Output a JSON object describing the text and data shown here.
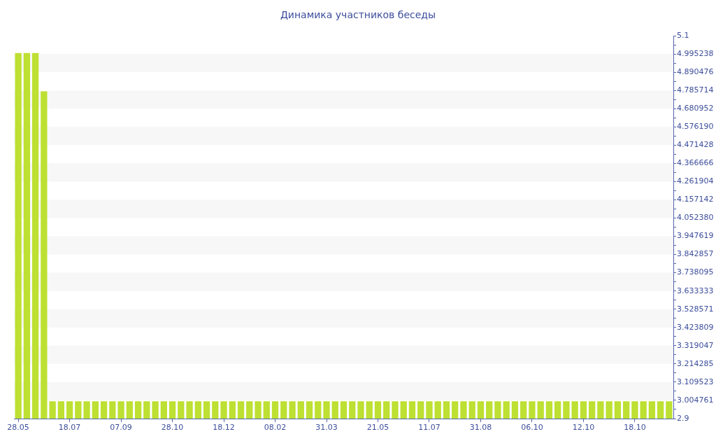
{
  "chart_data": {
    "type": "bar",
    "title": "Динамика участников беседы",
    "categories": [
      "28.05",
      null,
      null,
      null,
      null,
      null,
      "18.07",
      null,
      null,
      null,
      null,
      null,
      "07.09",
      null,
      null,
      null,
      null,
      null,
      "28.10",
      null,
      null,
      null,
      null,
      null,
      "18.12",
      null,
      null,
      null,
      null,
      null,
      "08.02",
      null,
      null,
      null,
      null,
      null,
      "31.03",
      null,
      null,
      null,
      null,
      null,
      "21.05",
      null,
      null,
      null,
      null,
      null,
      "11.07",
      null,
      null,
      null,
      null,
      null,
      "31.08",
      null,
      null,
      null,
      null,
      null,
      "06.10",
      null,
      null,
      null,
      null,
      null,
      "12.10",
      null,
      null,
      null,
      null,
      null,
      "18.10",
      null,
      null,
      null,
      null
    ],
    "values": [
      5,
      5,
      5,
      4.78,
      3,
      3,
      3,
      3,
      3,
      3,
      3,
      3,
      3,
      3,
      3,
      3,
      3,
      3,
      3,
      3,
      3,
      3,
      3,
      3,
      3,
      3,
      3,
      3,
      3,
      3,
      3,
      3,
      3,
      3,
      3,
      3,
      3,
      3,
      3,
      3,
      3,
      3,
      3,
      3,
      3,
      3,
      3,
      3,
      3,
      3,
      3,
      3,
      3,
      3,
      3,
      3,
      3,
      3,
      3,
      3,
      3,
      3,
      3,
      3,
      3,
      3,
      3,
      3,
      3,
      3,
      3,
      3,
      3,
      3,
      3,
      3,
      3
    ],
    "color": "#bde032",
    "ylim": [
      2.9,
      5.1
    ],
    "yticks": [
      2.9,
      {
        "value": 2.952381,
        "label": null
      },
      3.004761,
      {
        "value": 3.057142,
        "label": null
      },
      3.109523,
      {
        "value": 3.161904,
        "label": null
      },
      3.214285,
      {
        "value": 3.266666,
        "label": null
      },
      3.319047,
      {
        "value": 3.371428,
        "label": null
      },
      3.423809,
      {
        "value": 3.47619,
        "label": null
      },
      3.528571,
      {
        "value": 3.580952,
        "label": null
      },
      3.633333,
      {
        "value": 3.685714,
        "label": null
      },
      3.738095,
      {
        "value": 3.790476,
        "label": null
      },
      3.842857,
      {
        "value": 3.895238,
        "label": null
      },
      3.947619,
      {
        "value": 4.0,
        "label": null
      },
      {
        "value": 4.05238,
        "label": "4.052380"
      },
      {
        "value": 4.104761,
        "label": null
      },
      4.157142,
      {
        "value": 4.209523,
        "label": null
      },
      4.261904,
      {
        "value": 4.314285,
        "label": null
      },
      4.366666,
      {
        "value": 4.419047,
        "label": null
      },
      4.471428,
      {
        "value": 4.523809,
        "label": null
      },
      {
        "value": 4.57619,
        "label": "4.576190"
      },
      {
        "value": 4.628571,
        "label": null
      },
      4.680952,
      {
        "value": 4.733333,
        "label": null
      },
      4.785714,
      {
        "value": 4.838095,
        "label": null
      },
      4.890476,
      {
        "value": 4.942857,
        "label": null
      },
      4.995238,
      {
        "value": 5.047619,
        "label": null
      },
      5.1
    ],
    "bands": [
      {
        "axis": "y",
        "from": 3.004761,
        "to": 3.109523,
        "color": "#f7f7f7"
      },
      {
        "axis": "y",
        "from": 3.214285,
        "to": 3.319047,
        "color": "#f7f7f7"
      },
      {
        "axis": "y",
        "from": 3.423809,
        "to": 3.528571,
        "color": "#f7f7f7"
      },
      {
        "axis": "y",
        "from": 3.633333,
        "to": 3.738095,
        "color": "#f7f7f7"
      },
      {
        "axis": "y",
        "from": 3.842857,
        "to": 3.947619,
        "color": "#f7f7f7"
      },
      {
        "axis": "y",
        "from": 4.05238,
        "to": 4.157142,
        "color": "#f7f7f7"
      },
      {
        "axis": "y",
        "from": 4.261904,
        "to": 4.366666,
        "color": "#f7f7f7"
      },
      {
        "axis": "y",
        "from": 4.471428,
        "to": 4.57619,
        "color": "#f7f7f7"
      },
      {
        "axis": "y",
        "from": 4.680952,
        "to": 4.785714,
        "color": "#f7f7f7"
      },
      {
        "axis": "y",
        "from": 4.890476,
        "to": 4.995238,
        "color": "#f7f7f7"
      }
    ]
  }
}
